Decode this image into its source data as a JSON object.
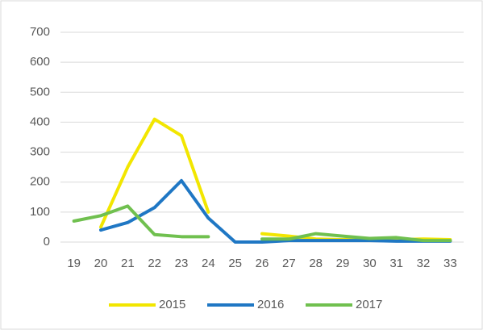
{
  "chart_data": {
    "type": "line",
    "categories": [
      19,
      20,
      21,
      22,
      23,
      24,
      25,
      26,
      27,
      28,
      29,
      30,
      31,
      32,
      33
    ],
    "series": [
      {
        "name": "2015",
        "color": "#f2e600",
        "values": [
          null,
          50,
          250,
          410,
          355,
          100,
          null,
          28,
          20,
          10,
          8,
          10,
          8,
          10,
          8
        ]
      },
      {
        "name": "2016",
        "color": "#1f77c4",
        "values": [
          null,
          40,
          65,
          115,
          205,
          80,
          0,
          0,
          5,
          5,
          5,
          5,
          3,
          3,
          3
        ]
      },
      {
        "name": "2017",
        "color": "#70c04f",
        "values": [
          70,
          88,
          120,
          25,
          18,
          18,
          null,
          10,
          10,
          28,
          20,
          12,
          15,
          5,
          5
        ]
      }
    ],
    "ylim": [
      0,
      700
    ],
    "yticks": [
      0,
      100,
      200,
      300,
      400,
      500,
      600,
      700
    ],
    "grid": true,
    "legend": "bottom"
  }
}
